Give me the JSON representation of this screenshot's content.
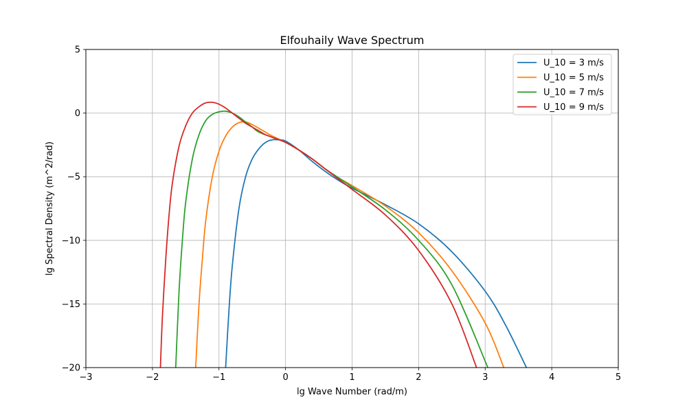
{
  "chart_data": {
    "type": "line",
    "title": "Elfouhaily Wave Spectrum",
    "xlabel": "lg Wave Number (rad/m)",
    "ylabel": "lg Spectral Density (m^2/rad)",
    "xlim": [
      -3,
      5
    ],
    "ylim": [
      -20,
      5
    ],
    "xticks": [
      -3,
      -2,
      -1,
      0,
      1,
      2,
      3,
      4,
      5
    ],
    "xtick_labels": [
      "−3",
      "−2",
      "−1",
      "0",
      "1",
      "2",
      "3",
      "4",
      "5"
    ],
    "yticks": [
      -20,
      -15,
      -10,
      -5,
      0,
      5
    ],
    "ytick_labels": [
      "−20",
      "−15",
      "−10",
      "−5",
      "0",
      "5"
    ],
    "grid": true,
    "legend_position": "top-right",
    "series": [
      {
        "name": "U_10 = 3 m/s",
        "color": "#1f77b4",
        "x": [
          -0.9,
          -0.85,
          -0.8,
          -0.7,
          -0.6,
          -0.5,
          -0.4,
          -0.3,
          -0.2,
          -0.1,
          0.0,
          0.2,
          0.4,
          0.6,
          0.8,
          1.0,
          1.5,
          2.0,
          2.5,
          3.0,
          3.3,
          3.62
        ],
        "y": [
          -20,
          -15.5,
          -12,
          -7.5,
          -5.0,
          -3.6,
          -2.8,
          -2.3,
          -2.1,
          -2.1,
          -2.2,
          -2.9,
          -3.8,
          -4.6,
          -5.3,
          -5.9,
          -7.2,
          -8.7,
          -10.9,
          -14.0,
          -16.6,
          -20
        ]
      },
      {
        "name": "U_10 = 5 m/s",
        "color": "#ff7f0e",
        "x": [
          -1.35,
          -1.3,
          -1.25,
          -1.2,
          -1.1,
          -1.0,
          -0.9,
          -0.8,
          -0.7,
          -0.6,
          -0.5,
          -0.4,
          -0.3,
          -0.2,
          0.0,
          0.2,
          0.4,
          0.6,
          0.8,
          1.0,
          1.5,
          2.0,
          2.5,
          3.0,
          3.28
        ],
        "y": [
          -20,
          -15.0,
          -11.5,
          -8.5,
          -5.0,
          -3.0,
          -1.8,
          -1.1,
          -0.75,
          -0.7,
          -0.9,
          -1.2,
          -1.5,
          -1.8,
          -2.3,
          -2.9,
          -3.6,
          -4.4,
          -5.1,
          -5.7,
          -7.3,
          -9.4,
          -12.4,
          -16.5,
          -20
        ]
      },
      {
        "name": "U_10 = 7 m/s",
        "color": "#2ca02c",
        "x": [
          -1.65,
          -1.6,
          -1.55,
          -1.5,
          -1.4,
          -1.3,
          -1.2,
          -1.1,
          -1.0,
          -0.9,
          -0.8,
          -0.7,
          -0.6,
          -0.5,
          -0.4,
          -0.2,
          0.0,
          0.2,
          0.4,
          0.6,
          0.8,
          1.0,
          1.5,
          2.0,
          2.5,
          3.04
        ],
        "y": [
          -20,
          -14.0,
          -10.0,
          -7.0,
          -3.6,
          -1.7,
          -0.6,
          -0.1,
          0.1,
          0.15,
          0.0,
          -0.3,
          -0.7,
          -1.1,
          -1.5,
          -1.9,
          -2.3,
          -2.9,
          -3.6,
          -4.4,
          -5.1,
          -5.8,
          -7.6,
          -10.0,
          -13.5,
          -20
        ]
      },
      {
        "name": "U_10 = 9 m/s",
        "color": "#d62728",
        "x": [
          -1.88,
          -1.85,
          -1.8,
          -1.75,
          -1.7,
          -1.6,
          -1.5,
          -1.4,
          -1.3,
          -1.2,
          -1.1,
          -1.0,
          -0.9,
          -0.8,
          -0.7,
          -0.6,
          -0.5,
          -0.4,
          -0.3,
          -0.2,
          0.0,
          0.2,
          0.4,
          0.6,
          0.8,
          1.0,
          1.5,
          2.0,
          2.5,
          2.87
        ],
        "y": [
          -20,
          -16.0,
          -11.5,
          -8.0,
          -5.5,
          -2.6,
          -1.0,
          0.0,
          0.5,
          0.8,
          0.85,
          0.7,
          0.4,
          0.0,
          -0.4,
          -0.8,
          -1.1,
          -1.4,
          -1.7,
          -1.9,
          -2.3,
          -2.9,
          -3.6,
          -4.4,
          -5.2,
          -6.0,
          -8.0,
          -10.8,
          -15.0,
          -20
        ]
      }
    ]
  }
}
